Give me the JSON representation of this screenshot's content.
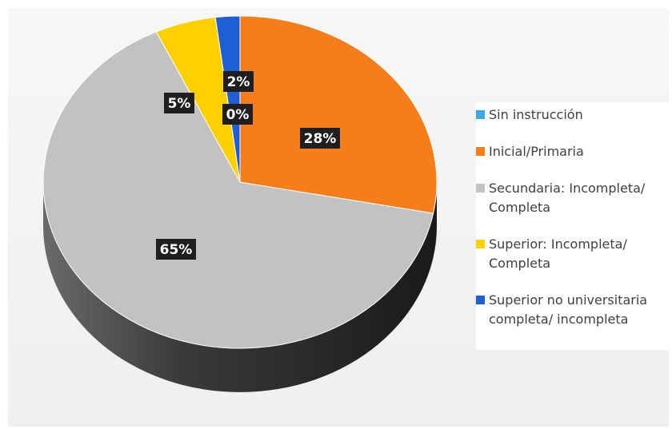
{
  "chart_data": {
    "type": "pie",
    "categories": [
      "Sin instrucción",
      "Inicial/Primaria",
      "Secundaria: Incompleta/\nCompleta",
      "Superior: Incompleta/\nCompleta",
      "Superior no universitaria\ncompleta/ incompleta"
    ],
    "values": [
      0,
      28,
      65,
      5,
      2
    ],
    "data_labels": [
      "0%",
      "28%",
      "65%",
      "5%",
      "2%"
    ],
    "colors": [
      "#3ba9e6",
      "#f57e1a",
      "#c2c2c2",
      "#ffd000",
      "#1f5fd6"
    ],
    "legend_position": "right",
    "style": "3d"
  }
}
